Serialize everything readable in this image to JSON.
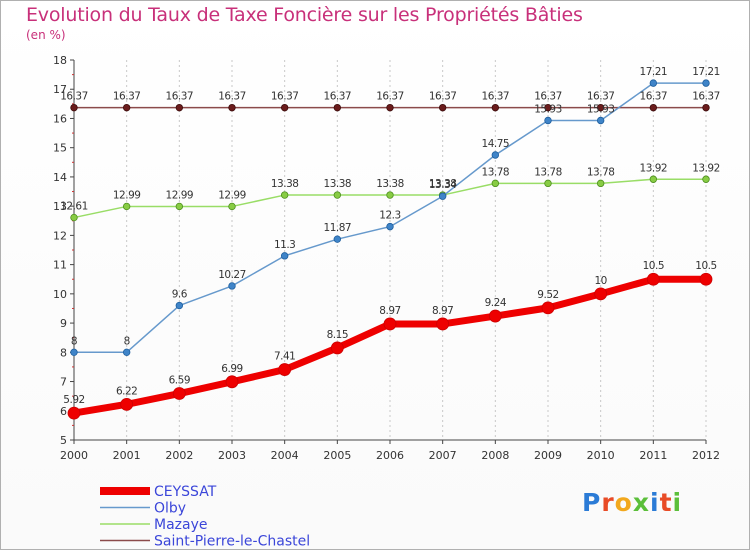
{
  "title": "Evolution du Taux de Taxe Foncière sur les Propriétés Bâties",
  "unit": "(en %)",
  "chart_data": {
    "type": "line",
    "title": "Evolution du Taux de Taxe Foncière sur les Propriétés Bâties",
    "ylabel": "(en %)",
    "xlabel": "",
    "x": [
      "2000",
      "2001",
      "2002",
      "2003",
      "2004",
      "2005",
      "2006",
      "2007",
      "2008",
      "2009",
      "2010",
      "2011",
      "2012"
    ],
    "ylim": [
      5,
      18
    ],
    "yticks": [
      "5",
      "6",
      "7",
      "8",
      "9",
      "10",
      "11",
      "12",
      "13",
      "14",
      "15",
      "16",
      "17",
      "18"
    ],
    "grid": "vertical dashed",
    "legend_position": "bottom-left",
    "series": [
      {
        "name": "CEYSSAT",
        "color": "#ee0000",
        "values": [
          5.92,
          6.22,
          6.59,
          6.99,
          7.41,
          8.15,
          8.97,
          8.97,
          9.24,
          9.52,
          10,
          10.5,
          10.5
        ],
        "labels": [
          "5.92",
          "6.22",
          "6.59",
          "6.99",
          "7.41",
          "8.15",
          "8.97",
          "8.97",
          "9.24",
          "9.52",
          "10",
          "10.5",
          "10.5"
        ]
      },
      {
        "name": "Olby",
        "color": "#6699cc",
        "values": [
          8,
          8,
          9.6,
          10.27,
          11.3,
          11.87,
          12.3,
          13.34,
          14.75,
          15.93,
          15.93,
          17.21,
          17.21
        ],
        "labels": [
          "8",
          "8",
          "9.6",
          "10.27",
          "11.3",
          "11.87",
          "12.3",
          "13.34",
          "14.75",
          "15.93",
          "15.93",
          "17.21",
          "17.21"
        ]
      },
      {
        "name": "Mazaye",
        "color": "#99dd66",
        "values": [
          12.61,
          12.99,
          12.99,
          12.99,
          13.38,
          13.38,
          13.38,
          13.38,
          13.78,
          13.78,
          13.78,
          13.92,
          13.92
        ],
        "labels": [
          "12.61",
          "12.99",
          "12.99",
          "12.99",
          "13.38",
          "13.38",
          "13.38",
          "13.38",
          "13.78",
          "13.78",
          "13.78",
          "13.92",
          "13.92"
        ]
      },
      {
        "name": "Saint-Pierre-le-Chastel",
        "color": "#8b4a4a",
        "values": [
          16.37,
          16.37,
          16.37,
          16.37,
          16.37,
          16.37,
          16.37,
          16.37,
          16.37,
          16.37,
          16.37,
          16.37,
          16.37
        ],
        "labels": [
          "16.37",
          "16.37",
          "16.37",
          "16.37",
          "16.37",
          "16.37",
          "16.37",
          "16.37",
          "16.37",
          "16.37",
          "16.37",
          "16.37",
          "16.37"
        ]
      }
    ]
  },
  "logo": {
    "text": "Proxiti",
    "letter_colors": [
      "#2b7bd6",
      "#e84b26",
      "#f2a81d",
      "#5bbf3a",
      "#2b7bd6",
      "#e84b26",
      "#5bbf3a"
    ]
  }
}
